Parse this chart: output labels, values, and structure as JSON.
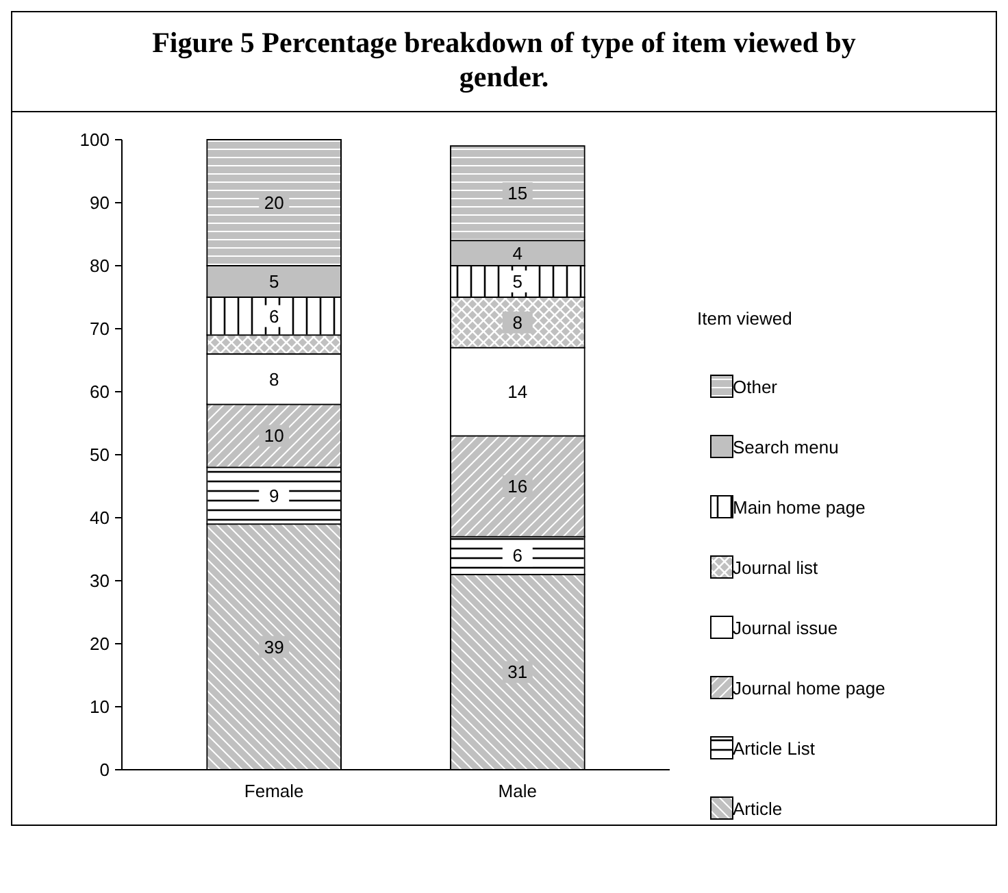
{
  "chart_data": {
    "type": "bar",
    "title": "Figure 5 Percentage breakdown of type of item viewed by gender.",
    "stacked": true,
    "categories": [
      "Female",
      "Male"
    ],
    "ylim": [
      0,
      100
    ],
    "yticks": [
      0,
      10,
      20,
      30,
      40,
      50,
      60,
      70,
      80,
      90,
      100
    ],
    "legend": "right",
    "legend_title": "Item viewed",
    "grid": false,
    "series": [
      {
        "name": "Article",
        "color": "#c0c0c0",
        "values": [
          39,
          31
        ],
        "value_labels": [
          "39",
          "31"
        ]
      },
      {
        "name": "Article List",
        "color": "#ffffff",
        "values": [
          9,
          6
        ],
        "value_labels": [
          "9",
          "6"
        ]
      },
      {
        "name": "Journal home page",
        "color": "#c0c0c0",
        "values": [
          10,
          16
        ],
        "value_labels": [
          "10",
          "16"
        ]
      },
      {
        "name": "Journal issue",
        "color": "#ffffff",
        "values": [
          8,
          14
        ],
        "value_labels": [
          "8",
          "14"
        ]
      },
      {
        "name": "Journal list",
        "color": "#c0c0c0",
        "values": [
          3,
          8
        ],
        "value_labels": [
          null,
          "8"
        ]
      },
      {
        "name": "Main home page",
        "color": "#ffffff",
        "values": [
          6,
          5
        ],
        "value_labels": [
          "6",
          "5"
        ]
      },
      {
        "name": "Search menu",
        "color": "#c0c0c0",
        "values": [
          5,
          4
        ],
        "value_labels": [
          "5",
          "4"
        ]
      },
      {
        "name": "Other",
        "color": "#c0c0c0",
        "values": [
          20,
          15
        ],
        "value_labels": [
          "20",
          "15"
        ]
      }
    ]
  }
}
